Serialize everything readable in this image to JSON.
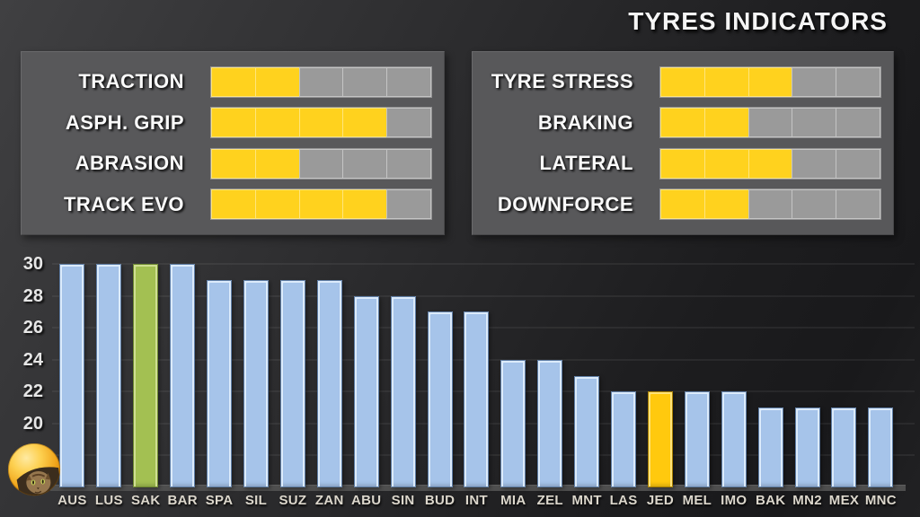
{
  "title": "TYRES INDICATORS",
  "colors": {
    "accent_yellow": "#ffd21e",
    "gauge_empty": "#9a9a9a",
    "panel_bg": "#58585a",
    "bar_blue": "#a6c4ea",
    "bar_green": "#a3c052",
    "bar_yellow": "#ffc90e"
  },
  "panels": {
    "left": {
      "rows": [
        {
          "label": "TRACTION",
          "value": 2,
          "max": 5
        },
        {
          "label": "ASPH. GRIP",
          "value": 4,
          "max": 5
        },
        {
          "label": "ABRASION",
          "value": 2,
          "max": 5
        },
        {
          "label": "TRACK EVO",
          "value": 4,
          "max": 5
        }
      ]
    },
    "right": {
      "rows": [
        {
          "label": "TYRE STRESS",
          "value": 3,
          "max": 5
        },
        {
          "label": "BRAKING",
          "value": 2,
          "max": 5
        },
        {
          "label": "LATERAL",
          "value": 3,
          "max": 5
        },
        {
          "label": "DOWNFORCE",
          "value": 2,
          "max": 5
        }
      ]
    }
  },
  "chart_data": {
    "type": "bar",
    "title": "",
    "xlabel": "",
    "ylabel": "",
    "categories": [
      "AUS",
      "LUS",
      "SAK",
      "BAR",
      "SPA",
      "SIL",
      "SUZ",
      "ZAN",
      "ABU",
      "SIN",
      "BUD",
      "INT",
      "MIA",
      "ZEL",
      "MNT",
      "LAS",
      "JED",
      "MEL",
      "IMO",
      "BAK",
      "MN2",
      "MEX",
      "MNC"
    ],
    "values": [
      30,
      30,
      30,
      30,
      29,
      29,
      29,
      29,
      28,
      28,
      27,
      27,
      24,
      24,
      23,
      22,
      22,
      22,
      22,
      21,
      21,
      21,
      21
    ],
    "bar_color_default": "blue",
    "bar_color_overrides": {
      "SAK": "green",
      "JED": "yellow"
    },
    "palette": {
      "blue": {
        "face": "#a6c4ea",
        "light": "#dcebfb",
        "dark": "#5f7ea6"
      },
      "green": {
        "face": "#a3c052",
        "light": "#cfdf92",
        "dark": "#6e8a30"
      },
      "yellow": {
        "face": "#ffc90e",
        "light": "#ffe37a",
        "dark": "#a87f00"
      }
    },
    "ylim": [
      16,
      30
    ],
    "ytick_labels": [
      30,
      28,
      26,
      24,
      22,
      20
    ],
    "gridline_values": [
      30,
      28,
      26,
      24,
      22,
      20,
      18
    ],
    "grid": true,
    "legend": "none"
  },
  "avatar": {
    "name": "cat-avatar"
  }
}
